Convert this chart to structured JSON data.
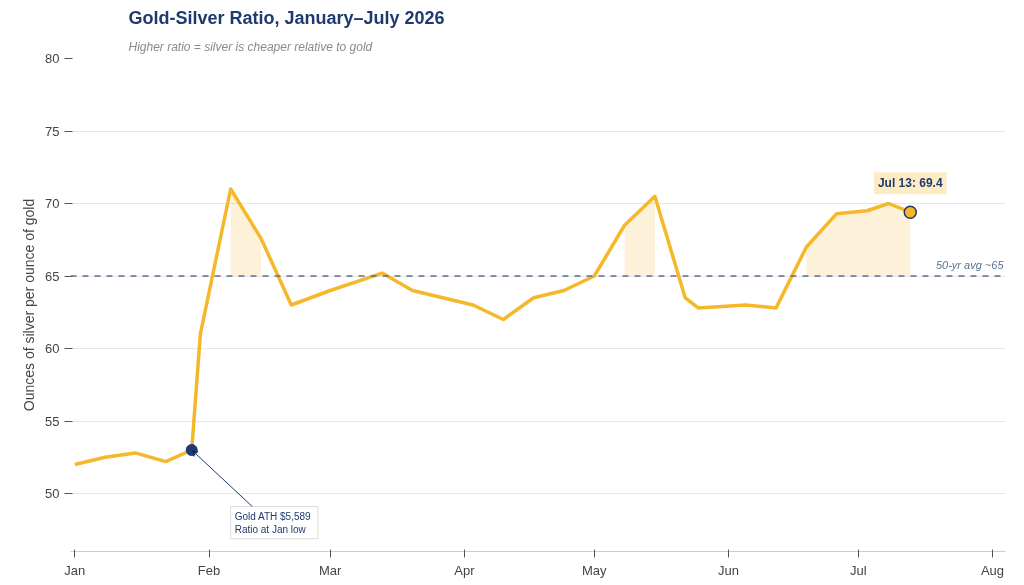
{
  "chart_data": {
    "type": "line",
    "title": "Gold-Silver Ratio, January–July 2026",
    "subtitle": "Higher ratio = silver is cheaper relative to gold",
    "ylabel": "Ounces of silver per ounce of gold",
    "x": [
      "2026-01-01",
      "2026-01-08",
      "2026-01-15",
      "2026-01-22",
      "2026-01-28",
      "2026-01-30",
      "2026-02-06",
      "2026-02-13",
      "2026-02-20",
      "2026-03-01",
      "2026-03-13",
      "2026-03-20",
      "2026-04-03",
      "2026-04-10",
      "2026-04-17",
      "2026-04-24",
      "2026-05-01",
      "2026-05-08",
      "2026-05-15",
      "2026-05-22",
      "2026-05-25",
      "2026-06-05",
      "2026-06-12",
      "2026-06-19",
      "2026-06-26",
      "2026-07-03",
      "2026-07-08",
      "2026-07-13"
    ],
    "series": [
      {
        "color": "#f5b82a",
        "values": [
          52.0,
          52.5,
          52.8,
          52.2,
          53.0,
          61.0,
          71.0,
          67.6,
          63.0,
          64.0,
          65.2,
          64.0,
          63.0,
          62.0,
          63.5,
          64.0,
          65.0,
          68.5,
          70.5,
          63.5,
          62.8,
          63.0,
          62.8,
          67.0,
          69.3,
          69.5,
          70.0,
          69.4
        ],
        "lower": [
          null,
          null,
          null,
          null,
          null,
          null,
          65,
          65,
          null,
          null,
          null,
          null,
          null,
          null,
          null,
          null,
          null,
          65,
          65,
          null,
          null,
          null,
          null,
          65,
          65,
          65,
          65,
          65
        ],
        "upper": [
          null,
          null,
          null,
          null,
          null,
          null,
          71.0,
          67.6,
          null,
          null,
          null,
          null,
          null,
          null,
          null,
          null,
          null,
          68.5,
          70.5,
          null,
          null,
          null,
          null,
          67.0,
          69.3,
          69.5,
          70.0,
          69.4
        ]
      }
    ],
    "xlim": [
      "2025-12-31",
      "2026-08-04"
    ],
    "xticks": [
      {
        "value": "2026-01-01",
        "label": "Jan"
      },
      {
        "value": "2026-02-01",
        "label": "Feb"
      },
      {
        "value": "2026-03-01",
        "label": "Mar"
      },
      {
        "value": "2026-04-01",
        "label": "Apr"
      },
      {
        "value": "2026-05-01",
        "label": "May"
      },
      {
        "value": "2026-06-01",
        "label": "Jun"
      },
      {
        "value": "2026-07-01",
        "label": "Jul"
      },
      {
        "value": "2026-08-01",
        "label": "Aug"
      }
    ],
    "ylim": [
      46,
      80
    ],
    "yticks": [
      50,
      55,
      60,
      65,
      70,
      75,
      80
    ],
    "grid": "y",
    "marker": "none",
    "line_style": "solid",
    "ref_lines": [
      {
        "axis": "y",
        "value": 65,
        "label": "50-yr avg ~65",
        "color": "#5a6f96",
        "line_style": "dashed"
      }
    ],
    "annotations": [
      {
        "text": "Gold ATH  $5,589\nRatio at Jan low",
        "x": "2026-01-28",
        "y": 53.0
      },
      {
        "text": "Jul 13: 69.4",
        "x": "2026-07-13",
        "y": 69.4
      }
    ]
  }
}
